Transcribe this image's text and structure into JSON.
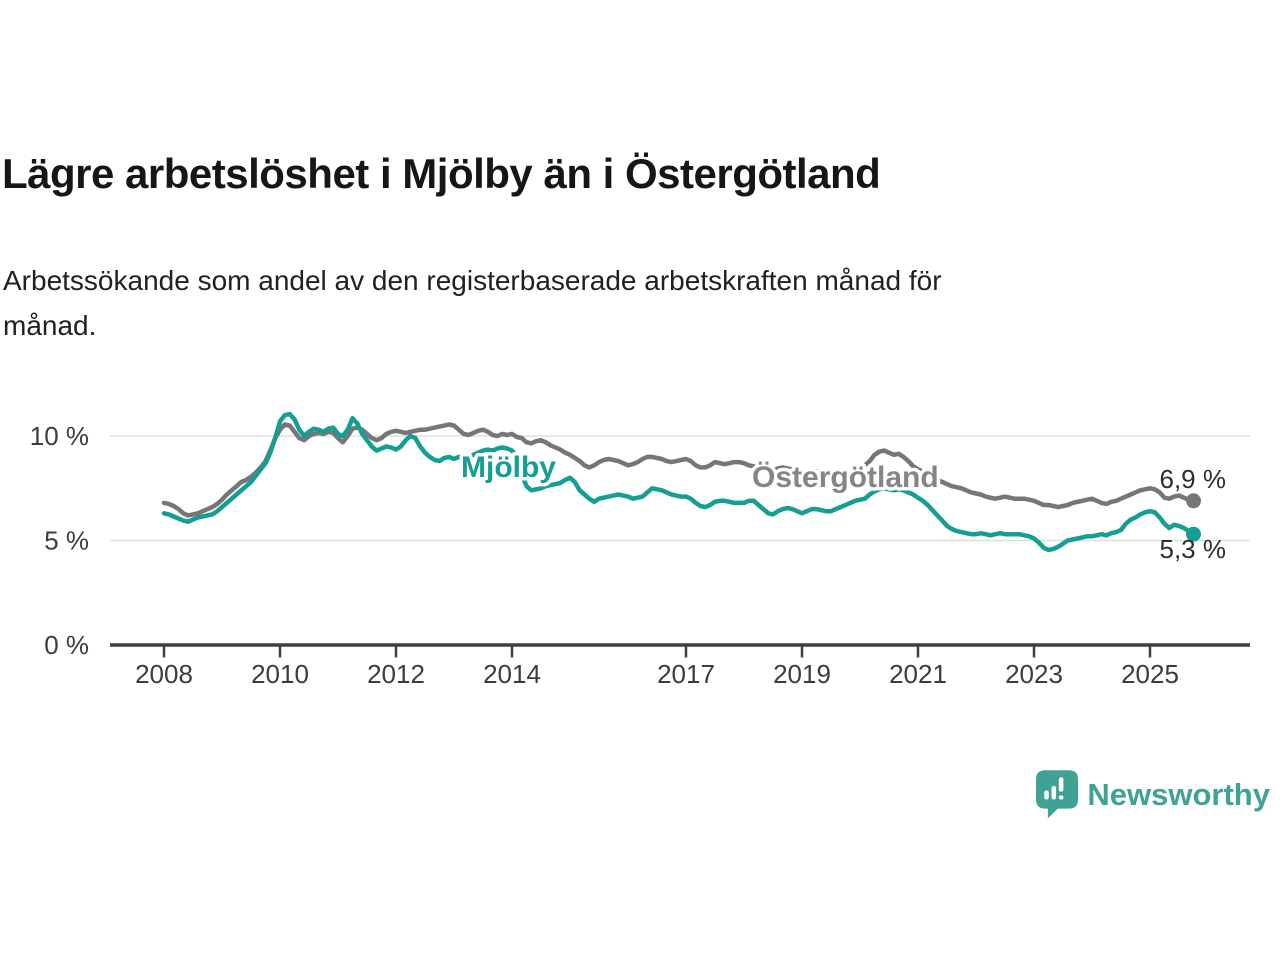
{
  "header": {
    "title": "Lägre arbetslöshet i Mjölby än i Östergötland",
    "subtitle_line1": "Arbetssökande som andel av den registerbaserade arbetskraften månad för",
    "subtitle_line2": "månad."
  },
  "chart_data": {
    "type": "line",
    "title": "Lägre arbetslöshet i Mjölby än i Östergötland",
    "xlabel": "",
    "ylabel": "",
    "unit": "%",
    "frequency": "monthly",
    "x_start": "2008-01",
    "x_end": "2025-10",
    "ylim": [
      0,
      11.8
    ],
    "grid": "horizontal",
    "legend_position": "inline-labels",
    "colors": {
      "grid": "#dedede",
      "axis": "#404040",
      "tick_text": "#3c3c3c",
      "end_label_text": "#2e2e2e"
    },
    "yticks": [
      {
        "value": 0,
        "label": "0 %"
      },
      {
        "value": 5,
        "label": "5 %"
      },
      {
        "value": 10,
        "label": "10 %"
      }
    ],
    "xticks": [
      {
        "year": 2008,
        "label": "2008"
      },
      {
        "year": 2010,
        "label": "2010"
      },
      {
        "year": 2012,
        "label": "2012"
      },
      {
        "year": 2014,
        "label": "2014"
      },
      {
        "year": 2017,
        "label": "2017"
      },
      {
        "year": 2019,
        "label": "2019"
      },
      {
        "year": 2021,
        "label": "2021"
      },
      {
        "year": 2023,
        "label": "2023"
      },
      {
        "year": 2025,
        "label": "2025"
      }
    ],
    "series": [
      {
        "name": "Mjölby",
        "slug": "mjolby",
        "color": "#149e94",
        "end_label": "5,3 %",
        "end_value": 5.3,
        "values": [
          6.3,
          6.25,
          6.15,
          6.05,
          5.95,
          5.9,
          6.0,
          6.1,
          6.15,
          6.2,
          6.25,
          6.4,
          6.6,
          6.8,
          7.0,
          7.2,
          7.4,
          7.6,
          7.8,
          8.1,
          8.4,
          8.7,
          9.2,
          9.9,
          10.7,
          11.0,
          11.05,
          10.8,
          10.3,
          10.0,
          10.2,
          10.35,
          10.3,
          10.2,
          10.35,
          10.4,
          10.1,
          10.0,
          10.3,
          10.85,
          10.6,
          10.1,
          9.8,
          9.5,
          9.3,
          9.4,
          9.5,
          9.45,
          9.35,
          9.5,
          9.8,
          10.0,
          9.9,
          9.5,
          9.2,
          9.0,
          8.85,
          8.8,
          8.95,
          9.0,
          8.9,
          9.0,
          9.05,
          8.95,
          9.1,
          9.2,
          9.3,
          9.35,
          9.3,
          9.4,
          9.45,
          9.4,
          9.3,
          9.0,
          8.2,
          7.6,
          7.4,
          7.45,
          7.5,
          7.6,
          7.65,
          7.7,
          7.75,
          7.9,
          8.0,
          7.8,
          7.4,
          7.2,
          7.0,
          6.85,
          7.0,
          7.05,
          7.1,
          7.15,
          7.2,
          7.15,
          7.1,
          7.0,
          7.05,
          7.1,
          7.3,
          7.5,
          7.45,
          7.4,
          7.3,
          7.2,
          7.15,
          7.1,
          7.1,
          7.0,
          6.8,
          6.65,
          6.6,
          6.7,
          6.85,
          6.9,
          6.9,
          6.85,
          6.8,
          6.8,
          6.8,
          6.9,
          6.9,
          6.7,
          6.5,
          6.3,
          6.25,
          6.4,
          6.5,
          6.55,
          6.5,
          6.4,
          6.3,
          6.4,
          6.5,
          6.5,
          6.45,
          6.4,
          6.4,
          6.5,
          6.6,
          6.7,
          6.8,
          6.9,
          6.95,
          7.0,
          7.2,
          7.35,
          7.45,
          7.5,
          7.45,
          7.4,
          7.45,
          7.4,
          7.3,
          7.2,
          7.05,
          6.9,
          6.7,
          6.45,
          6.2,
          5.95,
          5.7,
          5.55,
          5.45,
          5.4,
          5.35,
          5.3,
          5.3,
          5.35,
          5.3,
          5.25,
          5.3,
          5.35,
          5.3,
          5.3,
          5.3,
          5.3,
          5.25,
          5.2,
          5.1,
          4.9,
          4.65,
          4.55,
          4.6,
          4.7,
          4.85,
          5.0,
          5.05,
          5.1,
          5.15,
          5.2,
          5.2,
          5.25,
          5.3,
          5.25,
          5.35,
          5.4,
          5.5,
          5.8,
          6.0,
          6.1,
          6.25,
          6.35,
          6.4,
          6.35,
          6.1,
          5.8,
          5.6,
          5.75,
          5.7,
          5.6,
          5.45,
          5.3
        ]
      },
      {
        "name": "Östergötland",
        "slug": "ostergotland",
        "color": "#767676",
        "label_color": "#858585",
        "end_label": "6,9 %",
        "end_value": 6.9,
        "values": [
          6.8,
          6.75,
          6.65,
          6.5,
          6.3,
          6.2,
          6.25,
          6.3,
          6.4,
          6.5,
          6.6,
          6.75,
          6.95,
          7.2,
          7.4,
          7.6,
          7.8,
          7.9,
          8.05,
          8.25,
          8.5,
          8.8,
          9.3,
          9.9,
          10.3,
          10.55,
          10.5,
          10.2,
          9.9,
          9.8,
          10.0,
          10.1,
          10.15,
          10.1,
          10.2,
          10.15,
          9.9,
          9.7,
          10.0,
          10.35,
          10.4,
          10.3,
          10.1,
          9.9,
          9.8,
          9.9,
          10.1,
          10.2,
          10.25,
          10.2,
          10.15,
          10.2,
          10.25,
          10.3,
          10.3,
          10.35,
          10.4,
          10.45,
          10.5,
          10.55,
          10.5,
          10.3,
          10.1,
          10.05,
          10.15,
          10.25,
          10.3,
          10.2,
          10.05,
          10.0,
          10.1,
          10.05,
          10.1,
          9.95,
          9.9,
          9.7,
          9.65,
          9.75,
          9.8,
          9.7,
          9.55,
          9.45,
          9.35,
          9.2,
          9.1,
          8.95,
          8.8,
          8.6,
          8.5,
          8.6,
          8.75,
          8.85,
          8.9,
          8.85,
          8.8,
          8.7,
          8.6,
          8.65,
          8.75,
          8.9,
          9.0,
          9.0,
          8.95,
          8.9,
          8.8,
          8.75,
          8.8,
          8.85,
          8.9,
          8.8,
          8.6,
          8.5,
          8.5,
          8.6,
          8.75,
          8.7,
          8.65,
          8.7,
          8.75,
          8.75,
          8.7,
          8.6,
          8.55,
          8.5,
          8.45,
          8.4,
          8.35,
          8.45,
          8.5,
          8.45,
          8.4,
          8.35,
          8.3,
          8.3,
          8.35,
          8.3,
          8.25,
          8.2,
          8.1,
          8.05,
          8.1,
          8.2,
          8.3,
          8.4,
          8.5,
          8.6,
          8.8,
          9.1,
          9.25,
          9.3,
          9.2,
          9.1,
          9.15,
          9.0,
          8.8,
          8.55,
          8.4,
          8.3,
          8.15,
          8.0,
          7.9,
          7.8,
          7.7,
          7.6,
          7.55,
          7.5,
          7.4,
          7.3,
          7.25,
          7.2,
          7.1,
          7.05,
          7.0,
          7.05,
          7.1,
          7.05,
          7.0,
          7.0,
          7.0,
          6.95,
          6.9,
          6.8,
          6.7,
          6.7,
          6.65,
          6.6,
          6.65,
          6.7,
          6.8,
          6.85,
          6.9,
          6.95,
          7.0,
          6.9,
          6.8,
          6.75,
          6.85,
          6.9,
          7.0,
          7.1,
          7.2,
          7.3,
          7.4,
          7.45,
          7.5,
          7.45,
          7.3,
          7.05,
          7.0,
          7.1,
          7.15,
          7.05,
          6.95,
          6.9
        ]
      }
    ]
  },
  "footer": {
    "brand": "Newsworthy",
    "brand_color": "#3fa295"
  }
}
